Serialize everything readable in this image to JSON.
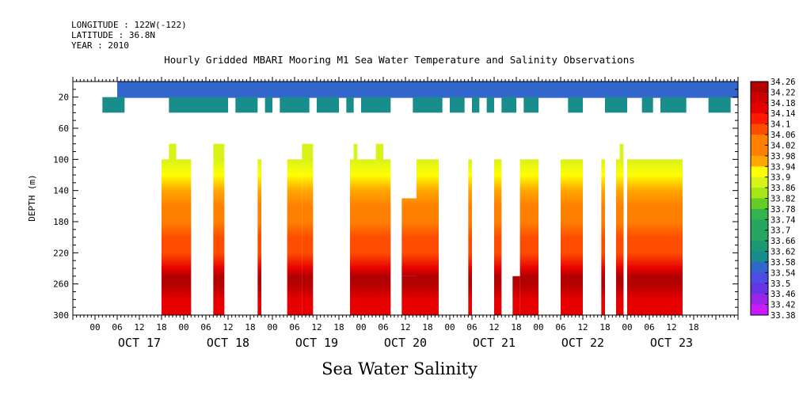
{
  "header": {
    "longitude": "LONGITUDE : 122W(-122)",
    "latitude": "LATITUDE : 36.8N",
    "year": "YEAR : 2010"
  },
  "chart_data": {
    "type": "heatmap",
    "title": "Hourly Gridded MBARI Mooring M1 Sea Water Temperature and Salinity Observations",
    "caption": "Sea Water Salinity",
    "ylabel": "DEPTH (m)",
    "xlabel": "",
    "x_units": "hours since Oct 17 2010 00:00",
    "xlim": [
      -6,
      174
    ],
    "ylim": [
      300,
      0
    ],
    "y_ticks": [
      20,
      60,
      100,
      140,
      180,
      220,
      260,
      300
    ],
    "x_tick_labels": [
      "00",
      "06",
      "12",
      "18",
      "00",
      "06",
      "12",
      "18",
      "00",
      "06",
      "12",
      "18",
      "00",
      "06",
      "12",
      "18",
      "00",
      "06",
      "12",
      "18",
      "00",
      "06",
      "12",
      "18",
      "00",
      "06",
      "12",
      "18"
    ],
    "day_labels": [
      "OCT 17",
      "OCT 18",
      "OCT 19",
      "OCT 20",
      "OCT 21",
      "OCT 22",
      "OCT 23"
    ],
    "colorbar": {
      "min": 33.38,
      "max": 34.26,
      "step": 0.04,
      "labels": [
        "34.26",
        "34.22",
        "34.18",
        "34.14",
        "34.1",
        "34.06",
        "34.02",
        "33.98",
        "33.94",
        "33.9",
        "33.86",
        "33.82",
        "33.78",
        "33.74",
        "33.7",
        "33.66",
        "33.62",
        "33.58",
        "33.54",
        "33.5",
        "33.46",
        "33.42",
        "33.38"
      ]
    },
    "surface_band": {
      "depth_range": [
        0,
        20
      ],
      "time_range": [
        6,
        174
      ],
      "salinity": 33.52
    },
    "depth_20_40": {
      "salinity": 33.6,
      "segments": [
        [
          2,
          8
        ],
        [
          20,
          36
        ],
        [
          38,
          44
        ],
        [
          46,
          48
        ],
        [
          50,
          58
        ],
        [
          60,
          66
        ],
        [
          68,
          70
        ],
        [
          72,
          80
        ],
        [
          86,
          94
        ],
        [
          96,
          100
        ],
        [
          102,
          104
        ],
        [
          106,
          108
        ],
        [
          110,
          114
        ],
        [
          116,
          120
        ],
        [
          128,
          132
        ],
        [
          138,
          144
        ],
        [
          148,
          151
        ],
        [
          153,
          160
        ],
        [
          166,
          172
        ]
      ]
    },
    "deep_profile": {
      "depth_levels": [
        80,
        100,
        120,
        140,
        160,
        180,
        200,
        220,
        240,
        250,
        260,
        280,
        300
      ],
      "salinity": [
        33.84,
        33.86,
        33.9,
        33.98,
        34.02,
        34.04,
        34.06,
        34.08,
        34.14,
        34.2,
        34.2,
        34.16,
        34.14
      ]
    },
    "deep_segments": [
      {
        "t0": 18,
        "t1": 26,
        "top": 100
      },
      {
        "t0": 20,
        "t1": 22,
        "top": 80
      },
      {
        "t0": 32,
        "t1": 35,
        "top": 80
      },
      {
        "t0": 44,
        "t1": 45,
        "top": 100
      },
      {
        "t0": 52,
        "t1": 56,
        "top": 100
      },
      {
        "t0": 56,
        "t1": 59,
        "top": 80
      },
      {
        "t0": 69,
        "t1": 80,
        "top": 100
      },
      {
        "t0": 70,
        "t1": 71,
        "top": 80
      },
      {
        "t0": 76,
        "t1": 78,
        "top": 80
      },
      {
        "t0": 83,
        "t1": 87,
        "top": 150,
        "bottom": 250
      },
      {
        "t0": 83,
        "t1": 87,
        "top": 250
      },
      {
        "t0": 87,
        "t1": 93,
        "top": 100
      },
      {
        "t0": 101,
        "t1": 102,
        "top": 100
      },
      {
        "t0": 108,
        "t1": 110,
        "top": 100
      },
      {
        "t0": 113,
        "t1": 115,
        "top": 250
      },
      {
        "t0": 115,
        "t1": 120,
        "top": 100
      },
      {
        "t0": 126,
        "t1": 132,
        "top": 100
      },
      {
        "t0": 137,
        "t1": 138,
        "top": 100
      },
      {
        "t0": 141,
        "t1": 143,
        "top": 100
      },
      {
        "t0": 142,
        "t1": 143,
        "top": 80
      },
      {
        "t0": 144,
        "t1": 159,
        "top": 100
      }
    ]
  }
}
